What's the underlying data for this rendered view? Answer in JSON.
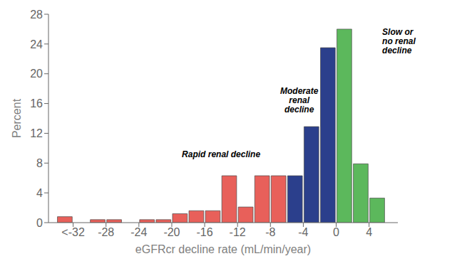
{
  "chart_data": {
    "type": "bar",
    "xlabel": "eGFRcr decline rate (mL/min/year)",
    "ylabel": "Percent",
    "x": [
      -33,
      -31,
      -29,
      -27,
      -25,
      -23,
      -21,
      -19,
      -17,
      -15,
      -13,
      -11,
      -9,
      -7,
      -5,
      -3,
      -1,
      1,
      3,
      5
    ],
    "values": [
      0.8,
      0.0,
      0.4,
      0.4,
      0.0,
      0.4,
      0.4,
      1.2,
      1.6,
      1.6,
      6.3,
      2.1,
      6.3,
      6.3,
      6.3,
      12.9,
      23.5,
      26.0,
      7.9,
      3.3
    ],
    "colors": [
      "#E8605A",
      "#E8605A",
      "#E8605A",
      "#E8605A",
      "#E8605A",
      "#E8605A",
      "#E8605A",
      "#E8605A",
      "#E8605A",
      "#E8605A",
      "#E8605A",
      "#E8605A",
      "#E8605A",
      "#E8605A",
      "#2B3F8C",
      "#2B3F8C",
      "#2B3F8C",
      "#5CB85C",
      "#5CB85C",
      "#5CB85C"
    ],
    "xlim": [
      -35,
      7.5
    ],
    "xticks": [
      {
        "value": -32,
        "label": "<-32"
      },
      -28,
      -24,
      -20,
      -16,
      -12,
      -8,
      -4,
      0,
      4
    ],
    "ylim": [
      0,
      28
    ],
    "yticks": [
      0,
      4,
      8,
      12,
      16,
      20,
      24,
      28
    ],
    "annotations": [
      {
        "text": "Rapid renal decline",
        "x": -14.0,
        "y": 8.5
      },
      {
        "text": "Moderate\nrenal\ndecline",
        "x": -4.5,
        "y": 14.5
      },
      {
        "text": "Slow or\nno renal\ndecline",
        "x": 5.6,
        "y": 22.5
      }
    ]
  }
}
